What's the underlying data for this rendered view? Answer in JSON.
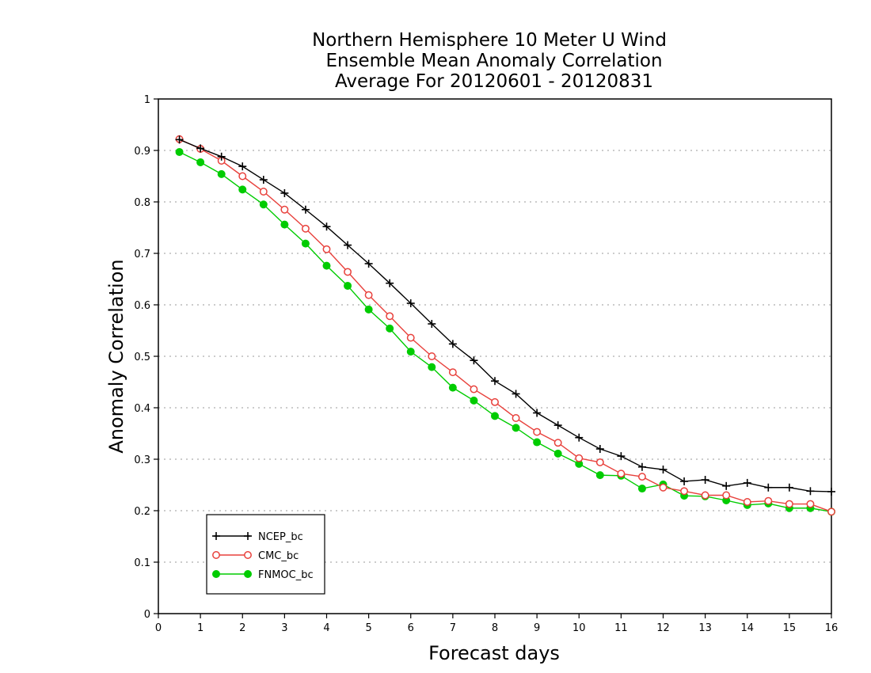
{
  "chart_data": {
    "type": "line",
    "title_lines": [
      "Northern Hemisphere 10 Meter U Wind",
      "Ensemble Mean Anomaly Correlation",
      "Average For 20120601 - 20120831"
    ],
    "xlabel": "Forecast days",
    "ylabel": "Anomaly Correlation",
    "xlim": [
      0,
      16
    ],
    "ylim": [
      0,
      1
    ],
    "xticks": [
      "0",
      "1",
      "2",
      "3",
      "4",
      "5",
      "6",
      "7",
      "8",
      "9",
      "10",
      "11",
      "12",
      "13",
      "14",
      "15",
      "16"
    ],
    "yticks": [
      "0",
      "0.1",
      "0.2",
      "0.3",
      "0.4",
      "0.5",
      "0.6",
      "0.7",
      "0.8",
      "0.9",
      "1"
    ],
    "grid": "horizontal-dotted",
    "legend_position": "bottom-left",
    "x": [
      0.5,
      1,
      1.5,
      2,
      2.5,
      3,
      3.5,
      4,
      4.5,
      5,
      5.5,
      6,
      6.5,
      7,
      7.5,
      8,
      8.5,
      9,
      9.5,
      10,
      10.5,
      11,
      11.5,
      12,
      12.5,
      13,
      13.5,
      14,
      14.5,
      15,
      15.5,
      16
    ],
    "series": [
      {
        "name": "NCEP_bc",
        "color": "#000000",
        "marker": "plus",
        "values": [
          0.921,
          0.904,
          0.888,
          0.869,
          0.843,
          0.817,
          0.785,
          0.752,
          0.716,
          0.68,
          0.642,
          0.603,
          0.563,
          0.524,
          0.492,
          0.452,
          0.427,
          0.39,
          0.366,
          0.342,
          0.32,
          0.306,
          0.285,
          0.28,
          0.257,
          0.26,
          0.248,
          0.254,
          0.245,
          0.245,
          0.238,
          0.237
        ]
      },
      {
        "name": "CMC_bc",
        "color": "#e8413c",
        "marker": "open-circle",
        "values": [
          0.922,
          0.903,
          0.88,
          0.85,
          0.82,
          0.785,
          0.748,
          0.708,
          0.664,
          0.619,
          0.578,
          0.536,
          0.5,
          0.469,
          0.436,
          0.411,
          0.38,
          0.353,
          0.332,
          0.302,
          0.294,
          0.272,
          0.266,
          0.245,
          0.238,
          0.23,
          0.23,
          0.217,
          0.219,
          0.213,
          0.213,
          0.198
        ]
      },
      {
        "name": "FNMOC_bc",
        "color": "#00cc00",
        "marker": "filled-circle",
        "values": [
          0.897,
          0.877,
          0.854,
          0.824,
          0.795,
          0.756,
          0.719,
          0.676,
          0.637,
          0.591,
          0.554,
          0.509,
          0.479,
          0.439,
          0.414,
          0.384,
          0.361,
          0.333,
          0.311,
          0.291,
          0.269,
          0.268,
          0.243,
          0.251,
          0.229,
          0.228,
          0.22,
          0.211,
          0.214,
          0.205,
          0.205,
          0.198
        ]
      }
    ]
  }
}
